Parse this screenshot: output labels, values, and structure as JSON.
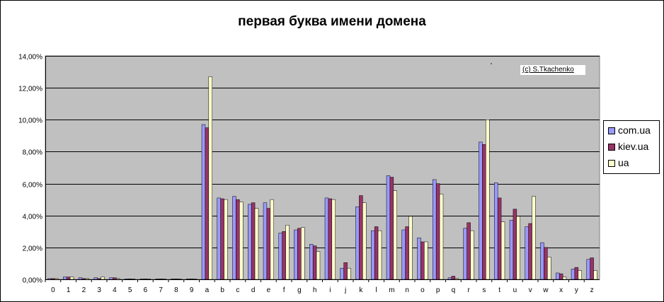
{
  "chart_data": {
    "type": "bar",
    "title": "первая буква имени домена",
    "annotation": "(c) S.Tkachenko",
    "ylim": [
      0,
      14
    ],
    "yticks": [
      0,
      2,
      4,
      6,
      8,
      10,
      12,
      14
    ],
    "ytick_labels": [
      "0,00%",
      "2,00%",
      "4,00%",
      "6,00%",
      "8,00%",
      "10,00%",
      "12,00%",
      "14,00%"
    ],
    "grid": "horizontal",
    "legend_position": "right",
    "plot_background": "#c0c0c0",
    "categories": [
      "0",
      "1",
      "2",
      "3",
      "4",
      "5",
      "6",
      "7",
      "8",
      "9",
      "a",
      "b",
      "c",
      "d",
      "e",
      "f",
      "g",
      "h",
      "i",
      "j",
      "k",
      "l",
      "m",
      "n",
      "o",
      "p",
      "q",
      "r",
      "s",
      "t",
      "u",
      "v",
      "w",
      "x",
      "y",
      "z"
    ],
    "series": [
      {
        "name": "com.ua",
        "color": "#9999ff",
        "values": [
          0.05,
          0.15,
          0.1,
          0.1,
          0.1,
          0.03,
          0.02,
          0.03,
          0.02,
          0.02,
          9.7,
          5.1,
          5.2,
          4.7,
          4.8,
          2.9,
          3.1,
          2.2,
          5.1,
          0.7,
          4.55,
          3.05,
          6.5,
          3.1,
          2.6,
          6.25,
          0.1,
          3.2,
          8.6,
          6.05,
          3.7,
          3.3,
          2.3,
          0.4,
          0.65,
          1.25
        ]
      },
      {
        "name": "kiev.ua",
        "color": "#993366",
        "values": [
          0.05,
          0.15,
          0.05,
          0.05,
          0.1,
          0.03,
          0.02,
          0.02,
          0.02,
          0.02,
          9.5,
          5.05,
          5.0,
          4.8,
          4.45,
          3.0,
          3.2,
          2.1,
          5.05,
          1.05,
          5.25,
          3.3,
          6.4,
          3.3,
          2.35,
          6.0,
          0.2,
          3.55,
          8.45,
          5.1,
          4.4,
          3.5,
          2.0,
          0.35,
          0.75,
          1.35
        ]
      },
      {
        "name": "ua",
        "color": "#ffffcc",
        "values": [
          0.05,
          0.15,
          0.05,
          0.15,
          0.05,
          0.02,
          0.02,
          0.02,
          0.02,
          0.02,
          12.7,
          5.0,
          4.85,
          4.45,
          5.0,
          3.4,
          3.25,
          1.75,
          5.0,
          0.7,
          4.8,
          3.05,
          5.55,
          3.95,
          2.35,
          5.35,
          0.05,
          3.05,
          10.0,
          3.6,
          3.95,
          5.2,
          1.4,
          0.15,
          0.55,
          0.55
        ]
      }
    ]
  }
}
